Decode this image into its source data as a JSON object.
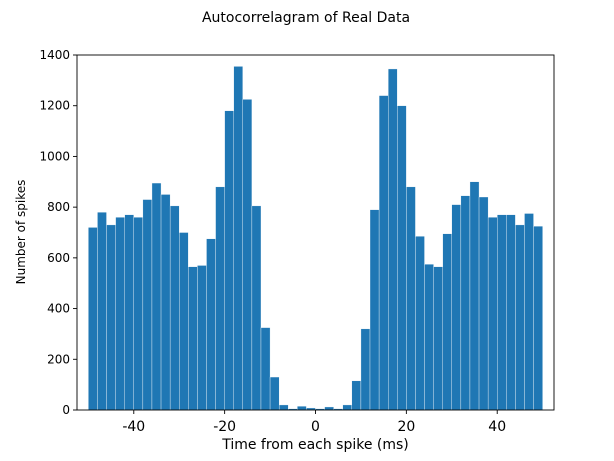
{
  "chart_data": {
    "type": "bar",
    "title": "Autocorrelagram of Real Data",
    "xlabel": "Time from each spike (ms)",
    "ylabel": "Number of spikes",
    "xlim": [
      -52.5,
      52.5
    ],
    "ylim": [
      0,
      1400
    ],
    "bin_width": 2,
    "x_ticks": [
      -40,
      -20,
      0,
      20,
      40
    ],
    "x_tick_labels": [
      "-40",
      "-20",
      "0",
      "20",
      "40"
    ],
    "y_ticks": [
      0,
      200,
      400,
      600,
      800,
      1000,
      1200,
      1400
    ],
    "y_tick_labels": [
      "0",
      "200",
      "400",
      "600",
      "800",
      "1000",
      "1200",
      "1400"
    ],
    "grid": false,
    "bar_color": "#1f77b4",
    "bins_left_edges": [
      -50,
      -48,
      -46,
      -44,
      -42,
      -40,
      -38,
      -36,
      -34,
      -32,
      -30,
      -28,
      -26,
      -24,
      -22,
      -20,
      -18,
      -16,
      -14,
      -12,
      -10,
      -8,
      -6,
      -4,
      -2,
      0,
      2,
      4,
      6,
      8,
      10,
      12,
      14,
      16,
      18,
      20,
      22,
      24,
      26,
      28,
      30,
      32,
      34,
      36,
      38,
      40,
      42,
      44,
      46,
      48
    ],
    "values": [
      720,
      780,
      730,
      760,
      770,
      760,
      830,
      895,
      850,
      805,
      700,
      565,
      570,
      675,
      880,
      1180,
      1355,
      1225,
      805,
      325,
      130,
      20,
      5,
      15,
      8,
      5,
      12,
      5,
      20,
      115,
      320,
      790,
      1240,
      1345,
      1200,
      880,
      685,
      575,
      565,
      695,
      810,
      845,
      900,
      840,
      760,
      770,
      770,
      730,
      775,
      725
    ]
  }
}
